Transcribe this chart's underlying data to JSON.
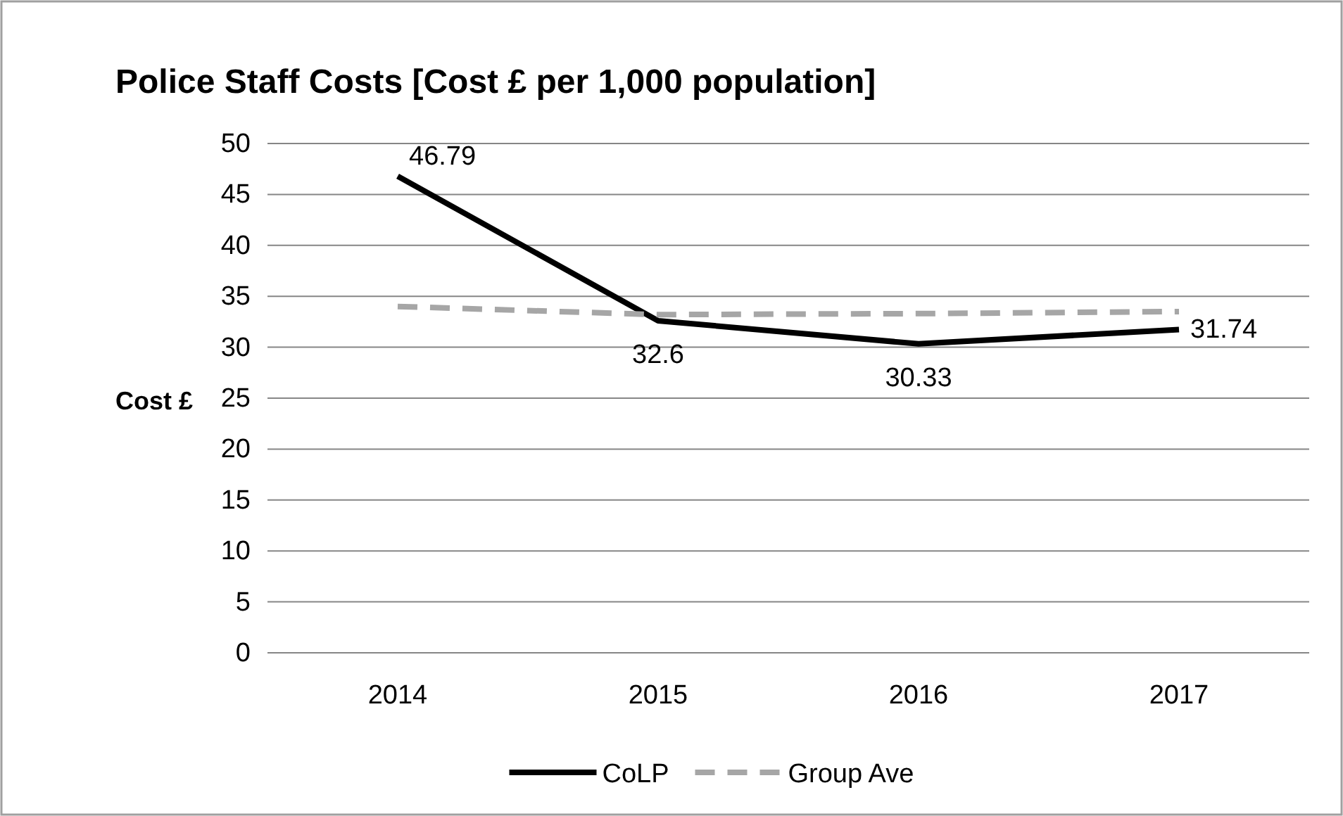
{
  "chart_data": {
    "type": "line",
    "title": "Police Staff Costs [Cost £ per 1,000 population]",
    "ylabel": "Cost £",
    "categories": [
      "2014",
      "2015",
      "2016",
      "2017"
    ],
    "series": [
      {
        "name": "CoLP",
        "color": "#000000",
        "values": [
          46.79,
          32.6,
          30.33,
          31.74
        ],
        "value_labels": [
          "46.79",
          "32.6",
          "30.33",
          "31.74"
        ],
        "line_style": "solid"
      },
      {
        "name": "Group Ave",
        "color": "#a6a6a6",
        "values": [
          34.0,
          33.2,
          33.3,
          33.5
        ],
        "line_style": "dashed"
      }
    ],
    "ylim": [
      0,
      50
    ],
    "yticks": [
      0,
      5,
      10,
      15,
      20,
      25,
      30,
      35,
      40,
      45,
      50
    ],
    "grid": "y",
    "legend": "bottom",
    "marker": "none"
  }
}
